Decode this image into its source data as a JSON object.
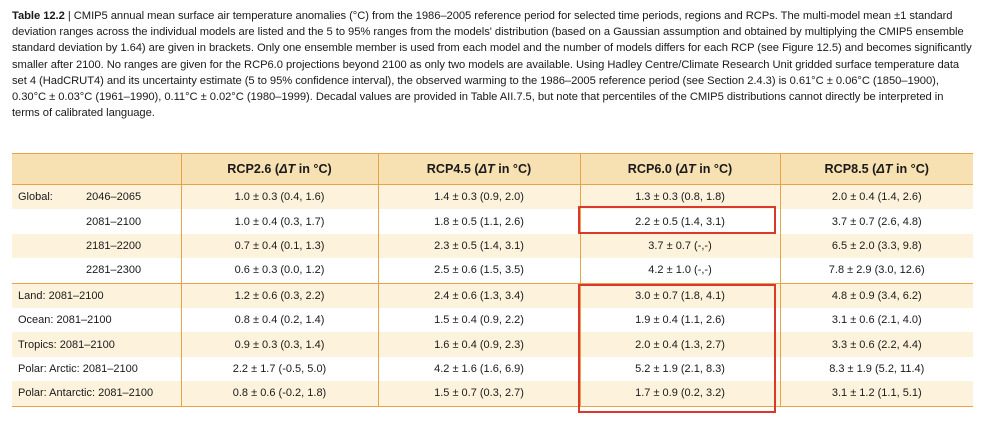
{
  "caption": {
    "table_number": "Table 12.2",
    "separator": "|",
    "text": "CMIP5 annual mean surface air temperature anomalies (°C) from the 1986–2005 reference period for selected time periods, regions and RCPs. The multi-model mean ±1 standard deviation ranges across the individual models are listed and the 5 to 95% ranges from the models' distribution (based on a Gaussian assumption and obtained by multiplying the CMIP5 ensemble standard deviation by 1.64) are given in brackets. Only one ensemble member is used from each model and the number of models differs for each RCP (see Figure 12.5) and becomes significantly smaller after 2100. No ranges are given for the RCP6.0 projections beyond 2100 as only two models are available. Using Hadley Centre/Climate Research Unit gridded surface temperature data set 4 (HadCRUT4) and its uncertainty estimate (5 to 95% confidence interval), the observed warming to the 1986–2005 reference period (see Section 2.4.3) is 0.61°C ± 0.06°C (1850–1900), 0.30°C ± 0.03°C (1961–1990), 0.11°C ± 0.02°C (1980–1999). Decadal values are provided in Table AII.7.5, but note that percentiles of the CMIP5 distributions cannot directly be interpreted in terms of calibrated language."
  },
  "table": {
    "headers": [
      {
        "prefix": "RCP2.6 (",
        "delta": "ΔT",
        "suffix": " in °C)"
      },
      {
        "prefix": "RCP4.5 (",
        "delta": "ΔT",
        "suffix": " in °C)"
      },
      {
        "prefix": "RCP6.0 (",
        "delta": "ΔT",
        "suffix": " in °C)"
      },
      {
        "prefix": "RCP8.5 (",
        "delta": "ΔT",
        "suffix": " in °C)"
      }
    ],
    "rows": [
      {
        "region": "Global:",
        "period": "2046–2065",
        "values": [
          "1.0 ± 0.3 (0.4, 1.6)",
          "1.4 ± 0.3 (0.9, 2.0)",
          "1.3 ± 0.3 (0.8, 1.8)",
          "2.0 ± 0.4 (1.4, 2.6)"
        ]
      },
      {
        "region": "",
        "period": "2081–2100",
        "values": [
          "1.0 ± 0.4 (0.3, 1.7)",
          "1.8 ± 0.5 (1.1, 2.6)",
          "2.2 ± 0.5 (1.4, 3.1)",
          "3.7 ± 0.7 (2.6, 4.8)"
        ]
      },
      {
        "region": "",
        "period": "2181–2200",
        "values": [
          "0.7 ± 0.4 (0.1, 1.3)",
          "2.3 ± 0.5 (1.4, 3.1)",
          "3.7 ± 0.7 (-,-)",
          "6.5 ± 2.0 (3.3, 9.8)"
        ]
      },
      {
        "region": "",
        "period": "2281–2300",
        "values": [
          "0.6 ± 0.3 (0.0, 1.2)",
          "2.5 ± 0.6 (1.5, 3.5)",
          "4.2 ± 1.0 (-,-)",
          "7.8 ± 2.9 (3.0, 12.6)"
        ]
      },
      {
        "label": "Land: 2081–2100",
        "values": [
          "1.2 ± 0.6 (0.3, 2.2)",
          "2.4 ± 0.6 (1.3, 3.4)",
          "3.0 ± 0.7 (1.8, 4.1)",
          "4.8 ± 0.9 (3.4, 6.2)"
        ]
      },
      {
        "label": "Ocean: 2081–2100",
        "values": [
          "0.8 ± 0.4 (0.2, 1.4)",
          "1.5 ± 0.4 (0.9, 2.2)",
          "1.9 ± 0.4 (1.1, 2.6)",
          "3.1 ± 0.6 (2.1, 4.0)"
        ]
      },
      {
        "label": "Tropics: 2081–2100",
        "values": [
          "0.9 ± 0.3 (0.3, 1.4)",
          "1.6 ± 0.4 (0.9, 2.3)",
          "2.0 ± 0.4 (1.3, 2.7)",
          "3.3 ± 0.6 (2.2, 4.4)"
        ]
      },
      {
        "label": "Polar: Arctic: 2081–2100",
        "values": [
          "2.2 ± 1.7 (-0.5, 5.0)",
          "4.2 ± 1.6 (1.6, 6.9)",
          "5.2 ± 1.9 (2.1, 8.3)",
          "8.3 ± 1.9 (5.2, 11.4)"
        ]
      },
      {
        "label": "Polar: Antarctic: 2081–2100",
        "values": [
          "0.8 ± 0.6 (-0.2, 1.8)",
          "1.5 ± 0.7 (0.3, 2.7)",
          "1.7 ± 0.9 (0.2, 3.2)",
          "3.1 ± 1.2 (1.1, 5.1)"
        ]
      }
    ]
  },
  "colors": {
    "header_fill": "#f7e1b3",
    "shaded_row": "#fdf3dd",
    "rule": "#e9a14a",
    "highlight": "#d9382a"
  }
}
